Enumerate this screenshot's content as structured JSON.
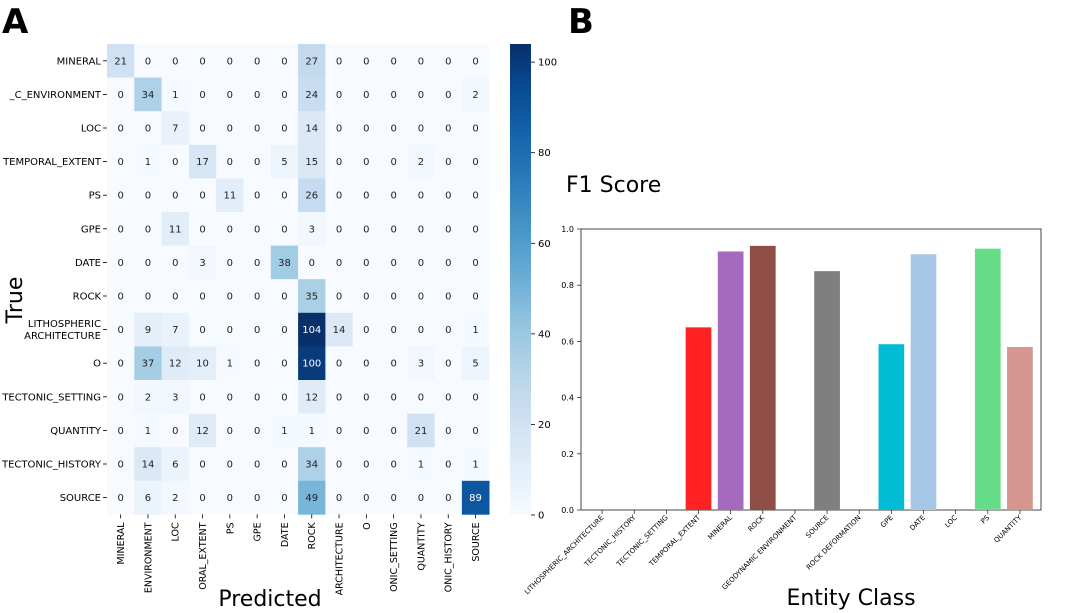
{
  "panel_labels": {
    "a": "A",
    "b": "B"
  },
  "chart_data": [
    {
      "type": "heatmap",
      "panel": "A",
      "xlabel": "Predicted",
      "ylabel": "True",
      "row_labels": [
        "MINERAL",
        "_C_ENVIRONMENT",
        "LOC",
        "TEMPORAL_EXTENT",
        "PS",
        "GPE",
        "DATE",
        "ROCK",
        "LITHOSPHERIC\nARCHITECTURE",
        "O",
        "TECTONIC_SETTING",
        "QUANTITY",
        "TECTONIC_HISTORY",
        "SOURCE"
      ],
      "col_labels": [
        "MINERAL",
        "ENVIRONMENT",
        "LOC",
        "ORAL_EXTENT",
        "PS",
        "GPE",
        "DATE",
        "ROCK",
        "ARCHITECTURE",
        "O",
        "ONIC_SETTING",
        "QUANTITY",
        "ONIC_HISTORY",
        "SOURCE"
      ],
      "matrix": [
        [
          21,
          0,
          0,
          0,
          0,
          0,
          0,
          27,
          0,
          0,
          0,
          0,
          0,
          0
        ],
        [
          0,
          34,
          1,
          0,
          0,
          0,
          0,
          24,
          0,
          0,
          0,
          0,
          0,
          2
        ],
        [
          0,
          0,
          7,
          0,
          0,
          0,
          0,
          14,
          0,
          0,
          0,
          0,
          0,
          0
        ],
        [
          0,
          1,
          0,
          17,
          0,
          0,
          5,
          15,
          0,
          0,
          0,
          2,
          0,
          0
        ],
        [
          0,
          0,
          0,
          0,
          11,
          0,
          0,
          26,
          0,
          0,
          0,
          0,
          0,
          0
        ],
        [
          0,
          0,
          11,
          0,
          0,
          0,
          0,
          3,
          0,
          0,
          0,
          0,
          0,
          0
        ],
        [
          0,
          0,
          0,
          3,
          0,
          0,
          38,
          0,
          0,
          0,
          0,
          0,
          0,
          0
        ],
        [
          0,
          0,
          0,
          0,
          0,
          0,
          0,
          35,
          0,
          0,
          0,
          0,
          0,
          0
        ],
        [
          0,
          9,
          7,
          0,
          0,
          0,
          0,
          104,
          14,
          0,
          0,
          0,
          0,
          1
        ],
        [
          0,
          37,
          12,
          10,
          1,
          0,
          0,
          100,
          0,
          0,
          0,
          3,
          0,
          5
        ],
        [
          0,
          2,
          3,
          0,
          0,
          0,
          0,
          12,
          0,
          0,
          0,
          0,
          0,
          0
        ],
        [
          0,
          1,
          0,
          12,
          0,
          0,
          1,
          1,
          0,
          0,
          0,
          21,
          0,
          0
        ],
        [
          0,
          14,
          6,
          0,
          0,
          0,
          0,
          34,
          0,
          0,
          0,
          1,
          0,
          1
        ],
        [
          0,
          6,
          2,
          0,
          0,
          0,
          0,
          49,
          0,
          0,
          0,
          0,
          0,
          89
        ]
      ],
      "colorbar": {
        "min": 0,
        "max": 104,
        "ticks": [
          0,
          20,
          40,
          60,
          80,
          100
        ],
        "colormap": "Blues"
      }
    },
    {
      "type": "bar",
      "panel": "B",
      "title": "F1 Score",
      "xlabel": "Entity Class",
      "ylabel": "",
      "ylim": [
        0,
        1.0
      ],
      "yticks": [
        0.0,
        0.2,
        0.4,
        0.6,
        0.8,
        1.0
      ],
      "yticklabels": [
        "0.0",
        "0.2",
        "0.4",
        "0.6",
        "0.8",
        "1.0"
      ],
      "categories": [
        "LITHOSPHERIC_ARCHITECTURE",
        "TECTONIC_HISTORY",
        "TECTONIC_SETTING",
        "TEMPORAL_EXTENT",
        "MINERAL",
        "ROCK",
        "GEODYNAMIC ENVIRONMENT",
        "SOURCE",
        "ROCK DEFORMATION",
        "GPE",
        "DATE",
        "LOC",
        "PS",
        "QUANTITY"
      ],
      "values": [
        0,
        0,
        0,
        0.65,
        0.92,
        0.94,
        0,
        0.85,
        0,
        0.59,
        0.91,
        0,
        0.93,
        0.58
      ],
      "colors": [
        "#1f77b4",
        "#ff7f0e",
        "#2ca02c",
        "#ff2222",
        "#a569bd",
        "#8e4e45",
        "#e377c2",
        "#7f7f7f",
        "#bcbd22",
        "#00bcd4",
        "#a7c7e7",
        "#6b8e23",
        "#66dd88",
        "#d4968f"
      ]
    }
  ]
}
